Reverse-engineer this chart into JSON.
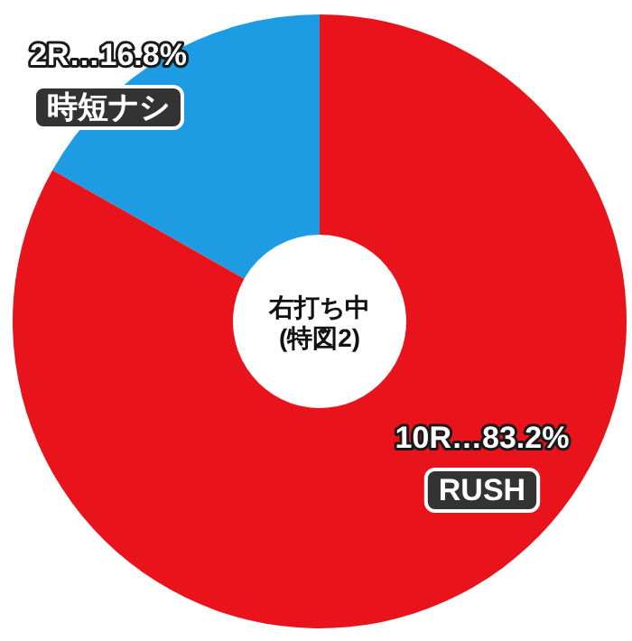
{
  "chart_data": {
    "type": "donut",
    "title": "右打ち中\n(特図2)",
    "categories": [
      null,
      null
    ],
    "values": [
      16.8,
      83.2
    ],
    "colors": [
      "#1d9be3",
      "#e8131b"
    ],
    "value_labels": [
      "2R…16.8%",
      "10R…83.2%"
    ],
    "annotations": [
      "時短ナシ",
      "RUSH"
    ]
  }
}
